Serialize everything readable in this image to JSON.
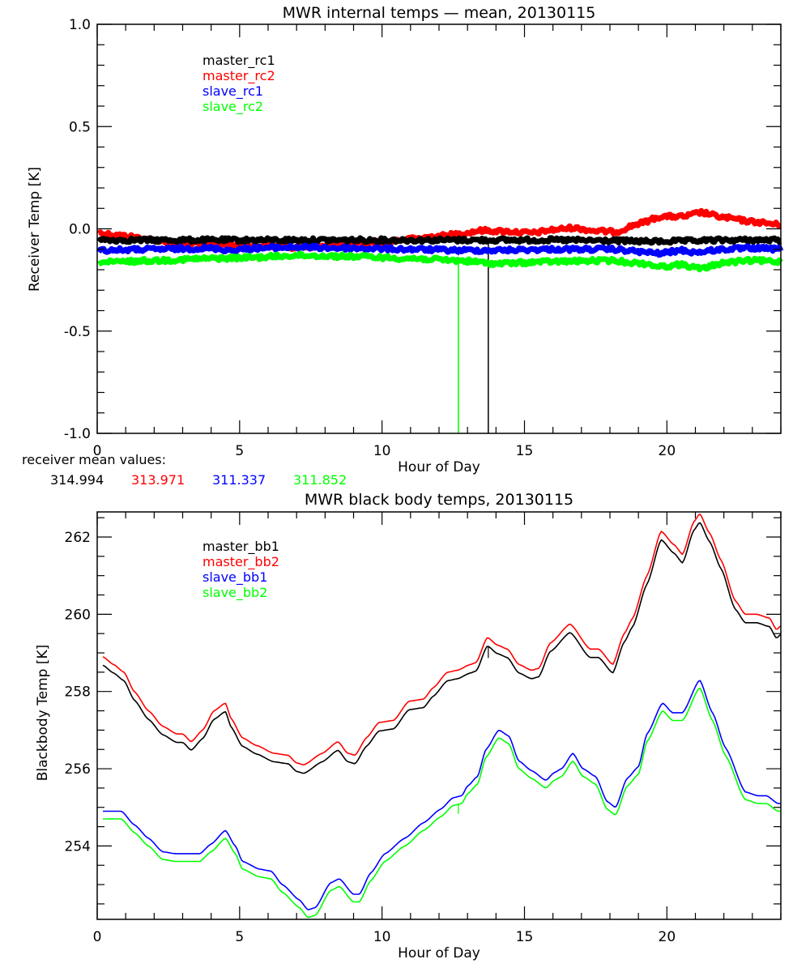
{
  "chart_data": [
    {
      "type": "line",
      "title": "MWR internal temps — mean, 20130115",
      "xlabel": "Hour of Day",
      "ylabel": "Receiver Temp [K]",
      "xlim": [
        0,
        24
      ],
      "ylim": [
        -1.0,
        1.0
      ],
      "x_ticks": [
        0,
        5,
        10,
        15,
        20
      ],
      "x_tick_labels": [
        "0",
        "5",
        "10",
        "15",
        "20"
      ],
      "y_ticks": [
        -1.0,
        -0.5,
        0.0,
        0.5,
        1.0
      ],
      "y_tick_labels": [
        "-1.0",
        "-0.5",
        "0.0",
        "0.5",
        "1.0"
      ],
      "legend_position": "top-left",
      "grid": false,
      "noisy": true,
      "series": [
        {
          "name": "master_rc1",
          "color": "#000000",
          "x": [
            0.05,
            2,
            4,
            6,
            8,
            10,
            12,
            13,
            14,
            16,
            18,
            19.5,
            20.5,
            22,
            24
          ],
          "y": [
            -0.055,
            -0.055,
            -0.055,
            -0.055,
            -0.055,
            -0.055,
            -0.055,
            -0.055,
            -0.055,
            -0.055,
            -0.058,
            -0.062,
            -0.06,
            -0.055,
            -0.055
          ],
          "spikes": [
            {
              "x": 13.73,
              "y": -1.0
            }
          ]
        },
        {
          "name": "master_rc2",
          "color": "#ff0000",
          "x": [
            0.05,
            1,
            2,
            3,
            4,
            5,
            6,
            7,
            8,
            9,
            10,
            11,
            12,
            12.7,
            13.5,
            14.3,
            15.3,
            16,
            16.7,
            17.5,
            18.2,
            19,
            19.8,
            20.6,
            21.2,
            22,
            23,
            24
          ],
          "y": [
            -0.02,
            -0.035,
            -0.055,
            -0.07,
            -0.075,
            -0.08,
            -0.085,
            -0.09,
            -0.085,
            -0.075,
            -0.065,
            -0.05,
            -0.035,
            -0.025,
            -0.008,
            -0.012,
            -0.02,
            -0.005,
            0.005,
            -0.01,
            -0.015,
            0.025,
            0.06,
            0.06,
            0.08,
            0.055,
            0.035,
            0.02
          ]
        },
        {
          "name": "slave_rc1",
          "color": "#0000ff",
          "x": [
            0.05,
            2,
            4,
            4.7,
            5.5,
            7,
            9,
            11,
            12.7,
            14,
            16,
            18,
            19.8,
            20.5,
            21,
            22,
            23,
            24
          ],
          "y": [
            -0.105,
            -0.1,
            -0.095,
            -0.105,
            -0.095,
            -0.09,
            -0.095,
            -0.1,
            -0.105,
            -0.105,
            -0.1,
            -0.1,
            -0.12,
            -0.105,
            -0.115,
            -0.1,
            -0.095,
            -0.1
          ],
          "spikes": [
            {
              "x": 12.68,
              "y": -0.13
            }
          ]
        },
        {
          "name": "slave_rc2",
          "color": "#00ff00",
          "x": [
            0.05,
            2,
            4,
            5.5,
            7,
            9,
            11,
            12.7,
            14,
            16,
            18,
            19.2,
            19.8,
            20.5,
            21.2,
            22,
            23,
            24
          ],
          "y": [
            -0.165,
            -0.155,
            -0.145,
            -0.14,
            -0.13,
            -0.135,
            -0.145,
            -0.155,
            -0.17,
            -0.16,
            -0.155,
            -0.17,
            -0.185,
            -0.175,
            -0.195,
            -0.165,
            -0.155,
            -0.16
          ],
          "spikes": [
            {
              "x": 12.68,
              "y": -1.0
            }
          ]
        }
      ],
      "annotation": {
        "label": "receiver mean values:",
        "values": [
          {
            "text": "314.994",
            "color": "#000000"
          },
          {
            "text": "313.971",
            "color": "#ff0000"
          },
          {
            "text": "311.337",
            "color": "#0000ff"
          },
          {
            "text": "311.852",
            "color": "#00ff00"
          }
        ]
      }
    },
    {
      "type": "line",
      "title": "MWR black body temps, 20130115",
      "xlabel": "Hour of Day",
      "ylabel": "Blackbody Temp [K]",
      "xlim": [
        0,
        24
      ],
      "ylim": [
        252.1,
        262.65
      ],
      "x_ticks": [
        0,
        5,
        10,
        15,
        20
      ],
      "x_tick_labels": [
        "0",
        "5",
        "10",
        "15",
        "20"
      ],
      "y_ticks": [
        254,
        256,
        258,
        260,
        262
      ],
      "y_tick_labels": [
        "254",
        "256",
        "258",
        "260",
        "262"
      ],
      "legend_position": "top-left",
      "grid": false,
      "series": [
        {
          "name": "master_bb1",
          "color": "#000000",
          "offset_from": "master_bb2",
          "offset": -0.22
        },
        {
          "name": "master_bb2",
          "color": "#ff0000",
          "x": [
            0.2,
            0.57,
            0.94,
            1.3,
            1.8,
            2.3,
            2.8,
            3.0,
            3.3,
            3.7,
            4.1,
            4.5,
            4.7,
            5.1,
            5.6,
            6.2,
            6.7,
            7.0,
            7.25,
            7.9,
            8.45,
            8.8,
            9.05,
            9.45,
            9.9,
            10.4,
            10.95,
            11.45,
            11.8,
            12.3,
            12.65,
            13.1,
            13.3,
            13.7,
            14.05,
            14.4,
            14.8,
            15.25,
            15.5,
            15.9,
            16.6,
            17.3,
            17.6,
            18.1,
            18.5,
            18.8,
            19.3,
            19.8,
            20.25,
            20.55,
            20.95,
            21.15,
            21.5,
            21.9,
            22.4,
            22.75,
            23.15,
            23.6,
            23.85,
            24
          ],
          "y": [
            258.9,
            258.7,
            258.5,
            258.0,
            257.5,
            257.1,
            256.9,
            256.9,
            256.7,
            257.0,
            257.5,
            257.7,
            257.3,
            256.8,
            256.6,
            256.4,
            256.35,
            256.15,
            256.1,
            256.4,
            256.7,
            256.4,
            256.35,
            256.8,
            257.2,
            257.25,
            257.75,
            257.8,
            258.1,
            258.5,
            258.55,
            258.7,
            258.75,
            259.4,
            259.2,
            259.1,
            258.7,
            258.55,
            258.6,
            259.25,
            259.75,
            259.1,
            259.1,
            258.7,
            259.5,
            259.9,
            261.0,
            262.15,
            261.8,
            261.55,
            262.4,
            262.6,
            262.1,
            261.4,
            260.35,
            260.0,
            260.0,
            259.9,
            259.6,
            259.7
          ]
        },
        {
          "name": "slave_bb1",
          "color": "#0000ff",
          "x": [
            0.2,
            0.5,
            0.85,
            1.3,
            1.8,
            2.3,
            2.75,
            3.0,
            3.6,
            4.0,
            4.5,
            4.85,
            5.1,
            5.7,
            6.1,
            6.5,
            7.1,
            7.4,
            7.65,
            8.2,
            8.5,
            9.0,
            9.2,
            9.6,
            10.1,
            10.8,
            11.45,
            12.05,
            12.5,
            12.8,
            13.0,
            13.35,
            13.65,
            14.1,
            14.45,
            14.8,
            15.25,
            15.75,
            16.05,
            16.3,
            16.7,
            17.05,
            17.5,
            17.9,
            18.2,
            18.6,
            19.0,
            19.3,
            19.85,
            20.2,
            20.55,
            21.15,
            21.6,
            22.05,
            22.75,
            23.2,
            23.5,
            23.9,
            24
          ],
          "y": [
            254.9,
            254.9,
            254.9,
            254.55,
            254.2,
            253.85,
            253.8,
            253.8,
            253.8,
            254.05,
            254.4,
            254.0,
            253.6,
            253.4,
            253.35,
            253.0,
            252.6,
            252.35,
            252.4,
            253.05,
            253.15,
            252.75,
            252.75,
            253.3,
            253.8,
            254.2,
            254.6,
            254.95,
            255.25,
            255.3,
            255.55,
            255.8,
            256.5,
            257.0,
            256.85,
            256.2,
            255.95,
            255.7,
            255.9,
            256.0,
            256.4,
            256.0,
            255.8,
            255.15,
            255.0,
            255.75,
            256.05,
            256.9,
            257.7,
            257.45,
            257.45,
            258.3,
            257.45,
            256.55,
            255.4,
            255.3,
            255.3,
            255.1,
            255.1
          ]
        },
        {
          "name": "slave_bb2",
          "color": "#00ff00",
          "offset_from": "slave_bb1",
          "offset": -0.2
        }
      ]
    }
  ]
}
